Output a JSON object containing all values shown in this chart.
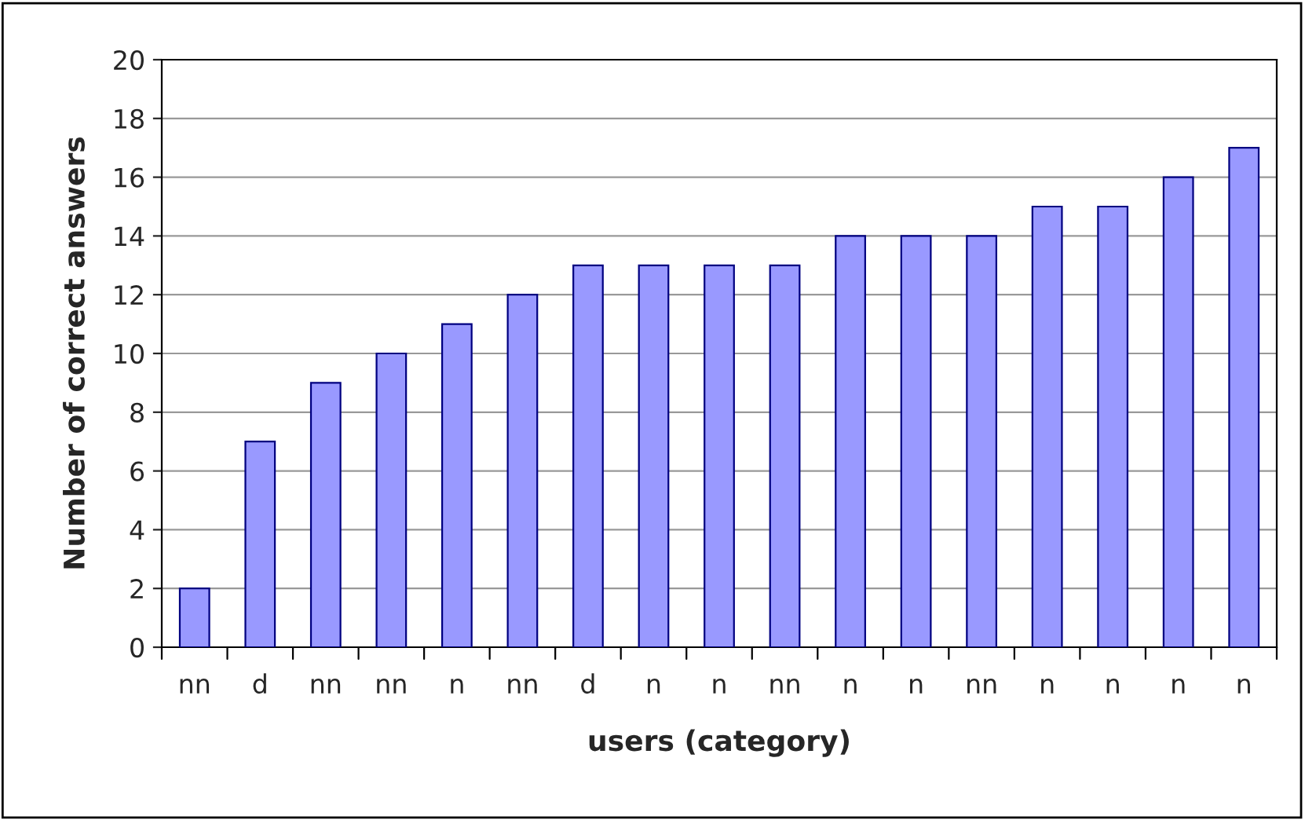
{
  "chart_data": {
    "type": "bar",
    "xlabel": "users (category)",
    "ylabel": "Number of correct answers",
    "categories": [
      "nn",
      "d",
      "nn",
      "nn",
      "n",
      "nn",
      "d",
      "n",
      "n",
      "nn",
      "n",
      "n",
      "nn",
      "n",
      "n",
      "n",
      "n"
    ],
    "values": [
      2,
      7,
      9,
      10,
      11,
      12,
      13,
      13,
      13,
      13,
      14,
      14,
      14,
      15,
      15,
      16,
      17
    ],
    "color": "#9999ff",
    "ylim": [
      0,
      20
    ],
    "yticks": [
      0,
      2,
      4,
      6,
      8,
      10,
      12,
      14,
      16,
      18,
      20
    ],
    "grid": "y",
    "legend": false
  }
}
